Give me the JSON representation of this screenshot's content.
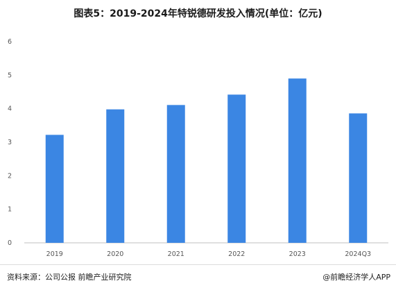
{
  "chart_data": {
    "type": "bar",
    "title": "图表5：2019-2024年特锐德研发投入情况(单位：亿元)",
    "categories": [
      "2019",
      "2020",
      "2021",
      "2022",
      "2023",
      "2024Q3"
    ],
    "values": [
      3.22,
      3.98,
      4.11,
      4.42,
      4.9,
      3.86
    ],
    "ylim": [
      0,
      6
    ],
    "yticks": [
      0,
      1,
      2,
      3,
      4,
      5,
      6
    ],
    "bar_color": "#3b86e3",
    "grid": false,
    "legend": "none"
  },
  "footer": {
    "source": "资料来源：公司公报 前瞻产业研究院",
    "brand": "@前瞻经济学人APP"
  }
}
